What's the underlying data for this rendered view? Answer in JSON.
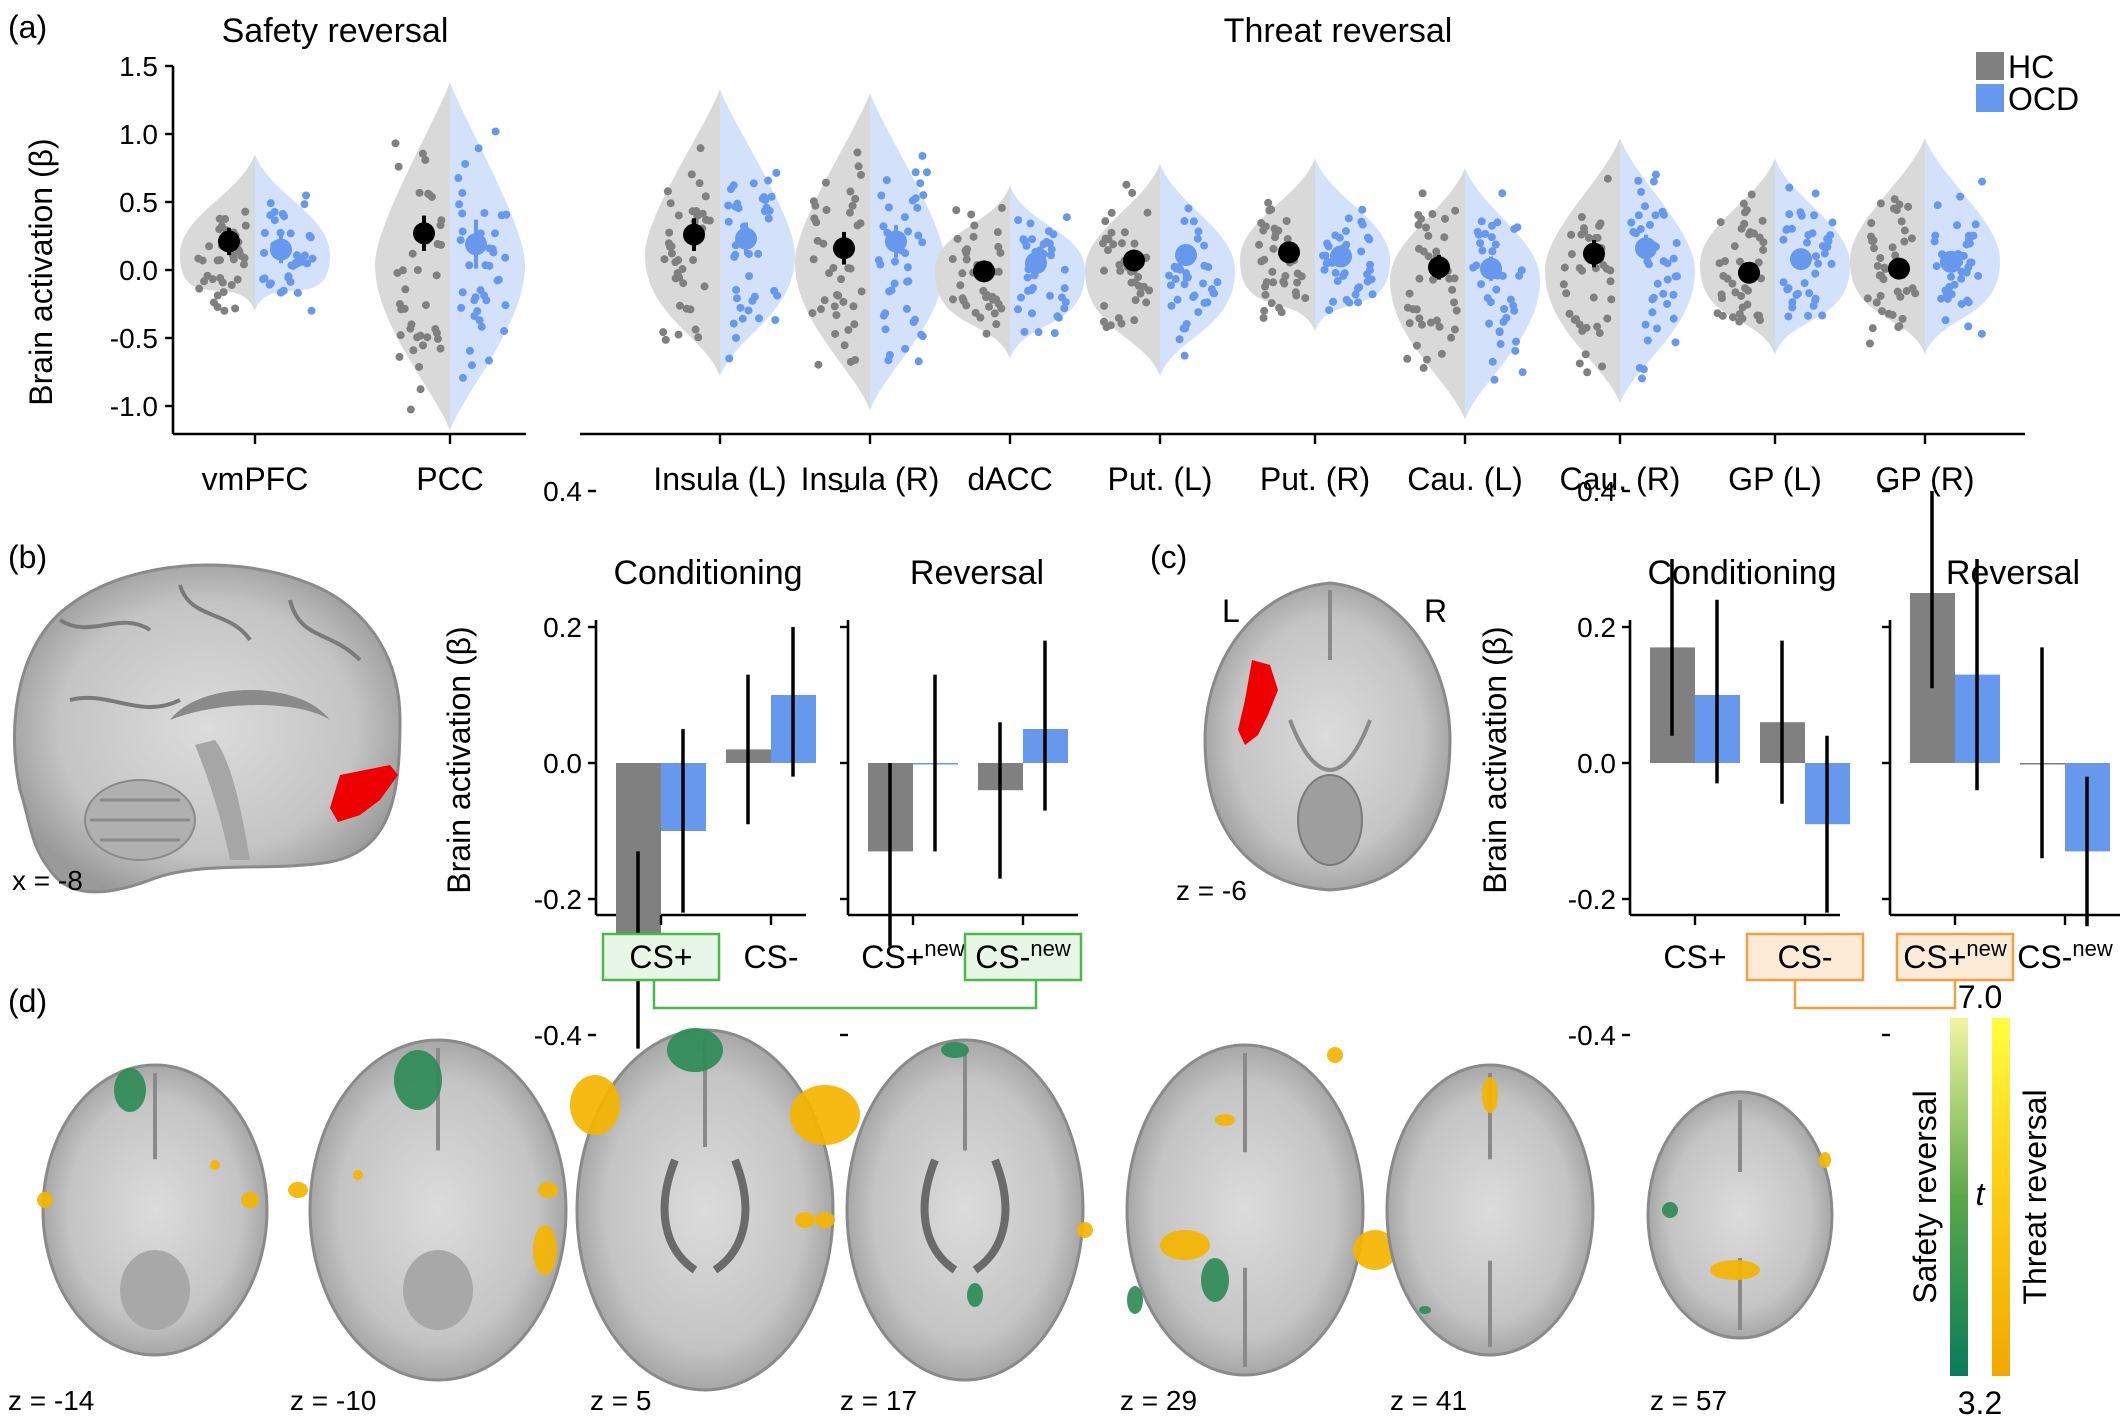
{
  "colors": {
    "hc": "#808080",
    "ocd": "#6699EE",
    "hc_mean": "#000000",
    "safety": "#2E8B57",
    "threat": "#F5B400",
    "box_green": "#4CB84C",
    "box_orange": "#F0A040"
  },
  "panel_a": {
    "label": "(a)",
    "title_safety": "Safety reversal",
    "title_threat": "Threat reversal",
    "ylabel": "Brain activation (β)",
    "legend": [
      {
        "name": "HC",
        "color": "#808080"
      },
      {
        "name": "OCD",
        "color": "#6699EE"
      }
    ],
    "ticks": [
      "1.5",
      "1.0",
      "0.5",
      "0.0",
      "-0.5",
      "-1.0"
    ]
  },
  "panel_b": {
    "label": "(b)",
    "coord": "x = -8",
    "title_cond": "Conditioning",
    "title_rev": "Reversal",
    "ylabel": "Brain activation (β)",
    "ticks": [
      "0.4",
      "0.2",
      "0.0",
      "-0.2",
      "-0.4"
    ],
    "x_cond": [
      "CS+",
      "CS-"
    ],
    "x_rev": [
      {
        "base": "CS+",
        "sup": "new"
      },
      {
        "base": "CS-",
        "sup": "new"
      }
    ]
  },
  "panel_c": {
    "label": "(c)",
    "coord": "z = -6",
    "hemi_left": "L",
    "hemi_right": "R",
    "title_cond": "Conditioning",
    "title_rev": "Reversal",
    "ylabel": "Brain activation (β)",
    "ticks": [
      "0.4",
      "0.2",
      "0.0",
      "-0.2",
      "-0.4"
    ],
    "x_cond": [
      "CS+",
      "CS-"
    ],
    "x_rev": [
      {
        "base": "CS+",
        "sup": "new"
      },
      {
        "base": "CS-",
        "sup": "new"
      }
    ]
  },
  "panel_d": {
    "label": "(d)",
    "slices": [
      "z = -14",
      "z = -10",
      "z = 5",
      "z = 17",
      "z = 29",
      "z = 41",
      "z = 57"
    ],
    "colorbar": {
      "max": "7.0",
      "min": "3.2",
      "stat": "t",
      "safety_label": "Safety reversal",
      "threat_label": "Threat reversal"
    }
  },
  "chart_data": [
    {
      "type": "violin",
      "title": "Safety reversal",
      "ylabel": "Brain activation (β)",
      "ylim": [
        -1.2,
        1.5
      ],
      "categories": [
        "vmPFC",
        "PCC"
      ],
      "series": [
        {
          "name": "HC",
          "values": [
            0.21,
            0.27
          ]
        },
        {
          "name": "OCD",
          "values": [
            0.15,
            0.19
          ]
        }
      ],
      "error": {
        "HC": [
          0.1,
          0.13
        ],
        "OCD": [
          0.1,
          0.18
        ]
      }
    },
    {
      "type": "violin",
      "title": "Threat reversal",
      "ylabel": "Brain activation (β)",
      "ylim": [
        -1.2,
        1.5
      ],
      "categories": [
        "Insula (L)",
        "Insula (R)",
        "dACC",
        "Put. (L)",
        "Put. (R)",
        "Cau. (L)",
        "Cau. (R)",
        "GP (L)",
        "GP (R)"
      ],
      "series": [
        {
          "name": "HC",
          "values": [
            0.26,
            0.16,
            -0.01,
            0.07,
            0.13,
            0.02,
            0.12,
            -0.02,
            0.01
          ]
        },
        {
          "name": "OCD",
          "values": [
            0.23,
            0.21,
            0.05,
            0.11,
            0.1,
            0.01,
            0.16,
            0.08,
            0.06
          ]
        }
      ],
      "error": {
        "HC": [
          0.12,
          0.12,
          0.06,
          0.06,
          0.07,
          0.09,
          0.1,
          0.06,
          0.06
        ],
        "OCD": [
          0.12,
          0.12,
          0.06,
          0.06,
          0.07,
          0.09,
          0.1,
          0.06,
          0.06
        ]
      }
    },
    {
      "type": "bar",
      "title": "Conditioning",
      "ylabel": "Brain activation (β)",
      "ylim": [
        -0.45,
        0.45
      ],
      "categories": [
        "CS+",
        "CS-"
      ],
      "series": [
        {
          "name": "HC",
          "values": [
            -0.27,
            0.02
          ]
        },
        {
          "name": "OCD",
          "values": [
            -0.1,
            0.1
          ]
        }
      ],
      "error_low": {
        "HC": [
          -0.42,
          -0.09
        ],
        "OCD": [
          -0.22,
          -0.02
        ]
      },
      "error_high": {
        "HC": [
          -0.13,
          0.13
        ],
        "OCD": [
          0.05,
          0.2
        ]
      }
    },
    {
      "type": "bar",
      "title": "Reversal",
      "ylim": [
        -0.45,
        0.45
      ],
      "categories": [
        "CS+new",
        "CS-new"
      ],
      "series": [
        {
          "name": "HC",
          "values": [
            -0.13,
            -0.04
          ]
        },
        {
          "name": "OCD",
          "values": [
            0.0,
            0.05
          ]
        }
      ],
      "error_low": {
        "HC": [
          -0.27,
          -0.17
        ],
        "OCD": [
          -0.13,
          -0.07
        ]
      },
      "error_high": {
        "HC": [
          0.0,
          0.06
        ],
        "OCD": [
          0.13,
          0.18
        ]
      }
    },
    {
      "type": "bar",
      "title": "Conditioning",
      "ylabel": "Brain activation (β)",
      "ylim": [
        -0.45,
        0.45
      ],
      "categories": [
        "CS+",
        "CS-"
      ],
      "series": [
        {
          "name": "HC",
          "values": [
            0.17,
            0.06
          ]
        },
        {
          "name": "OCD",
          "values": [
            0.1,
            -0.09
          ]
        }
      ],
      "error_low": {
        "HC": [
          0.04,
          -0.06
        ],
        "OCD": [
          -0.03,
          -0.22
        ]
      },
      "error_high": {
        "HC": [
          0.3,
          0.18
        ],
        "OCD": [
          0.24,
          0.04
        ]
      }
    },
    {
      "type": "bar",
      "title": "Reversal",
      "ylim": [
        -0.45,
        0.45
      ],
      "categories": [
        "CS+new",
        "CS-new"
      ],
      "series": [
        {
          "name": "HC",
          "values": [
            0.25,
            0.0
          ]
        },
        {
          "name": "OCD",
          "values": [
            0.13,
            -0.13
          ]
        }
      ],
      "error_low": {
        "HC": [
          0.11,
          -0.14
        ],
        "OCD": [
          -0.04,
          -0.24
        ]
      },
      "error_high": {
        "HC": [
          0.4,
          0.17
        ],
        "OCD": [
          0.3,
          -0.02
        ]
      }
    }
  ]
}
